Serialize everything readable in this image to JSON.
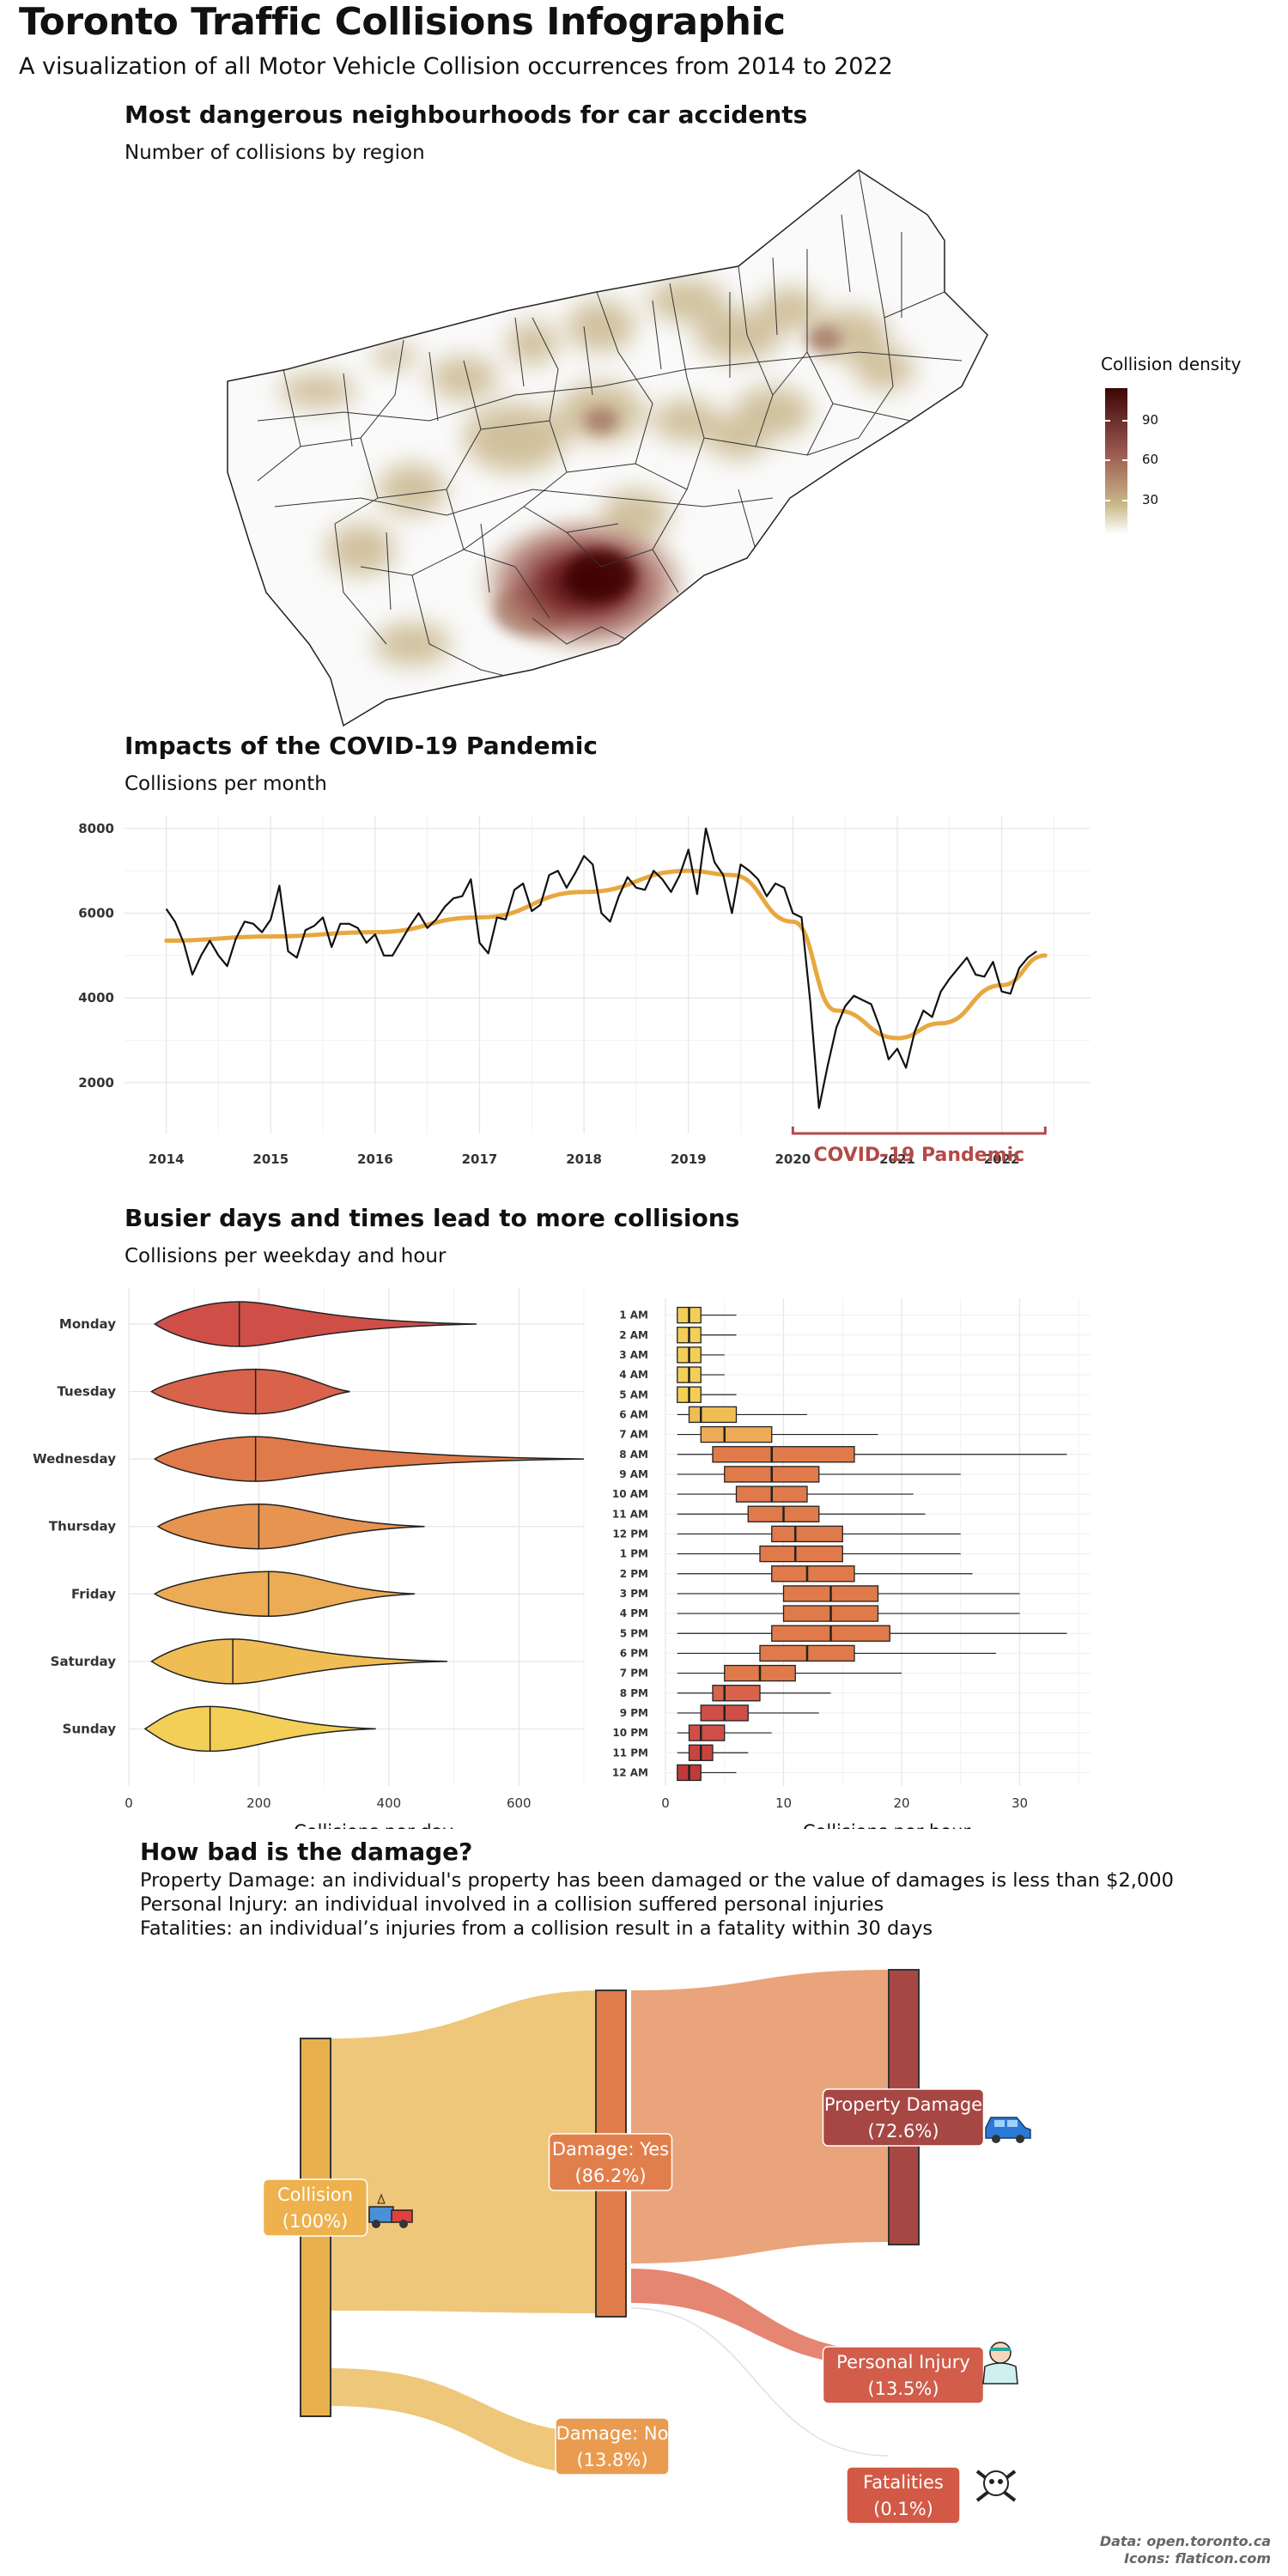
{
  "header": {
    "title": "Toronto Traffic Collisions Infographic",
    "subtitle": "A visualization of all Motor Vehicle Collision occurrences from 2014 to 2022"
  },
  "map_section": {
    "title": "Most dangerous neighbourhoods for car accidents",
    "subtitle": "Number of collisions by region",
    "legend_title": "Collision density",
    "legend_ticks": [
      "90",
      "60",
      "30"
    ],
    "colors": {
      "low": "#c9b98a",
      "mid": "#9c5a52",
      "high": "#4a0a0a"
    }
  },
  "covid_section": {
    "title": "Impacts of the COVID-19 Pandemic",
    "subtitle": "Collisions per month",
    "annotation": "COVID-19 Pandemic",
    "annotation_color": "#b24a48",
    "trend_color": "#e8a840"
  },
  "weekday_section": {
    "title": "Busier days and times lead to more collisions",
    "subtitle": "Collisions per weekday and hour"
  },
  "damage_section": {
    "title": "How bad is the damage?",
    "definitions": [
      "Property Damage: an individual's property has been damaged or the value of damages is less than $2,000",
      "Personal Injury: an individual involved in a collision suffered personal injuries",
      "Fatalities: an individual’s injuries from a collision result in a fatality within 30 days"
    ],
    "nodes": {
      "collision": [
        "Collision",
        "(100%)"
      ],
      "damage_yes": [
        "Damage: Yes",
        "(86.2%)"
      ],
      "damage_no": [
        "Damage: No",
        "(13.8%)"
      ],
      "property": [
        "Property Damage",
        "(72.6%)"
      ],
      "injury": [
        "Personal Injury",
        "(13.5%)"
      ],
      "fatal": [
        "Fatalities",
        "(0.1%)"
      ]
    },
    "icons": [
      "tow-truck-icon",
      "car-icon",
      "injured-person-icon",
      "skull-crossbones-icon"
    ]
  },
  "footer": {
    "line1": "Data: open.toronto.ca",
    "line2": "Icons: flaticon.com"
  },
  "chart_data": [
    {
      "type": "line",
      "title": "Impacts of the COVID-19 Pandemic",
      "subtitle": "Collisions per month",
      "x_ticks": [
        "2014",
        "2015",
        "2016",
        "2017",
        "2018",
        "2019",
        "2020",
        "2021",
        "2022"
      ],
      "y_ticks": [
        2000,
        4000,
        6000,
        8000
      ],
      "ylim": [
        800,
        8300
      ],
      "series": [
        {
          "values": [
            [
              "2014-01",
              6100
            ],
            [
              "2014-02",
              5800
            ],
            [
              "2014-03",
              5300
            ],
            [
              "2014-04",
              4550
            ],
            [
              "2014-05",
              5000
            ],
            [
              "2014-06",
              5350
            ],
            [
              "2014-07",
              5000
            ],
            [
              "2014-08",
              4750
            ],
            [
              "2014-09",
              5400
            ],
            [
              "2014-10",
              5800
            ],
            [
              "2014-11",
              5750
            ],
            [
              "2014-12",
              5550
            ],
            [
              "2015-01",
              5850
            ],
            [
              "2015-02",
              6650
            ],
            [
              "2015-03",
              5100
            ],
            [
              "2015-04",
              4950
            ],
            [
              "2015-05",
              5600
            ],
            [
              "2015-06",
              5700
            ],
            [
              "2015-07",
              5900
            ],
            [
              "2015-08",
              5200
            ],
            [
              "2015-09",
              5750
            ],
            [
              "2015-10",
              5750
            ],
            [
              "2015-11",
              5650
            ],
            [
              "2015-12",
              5300
            ],
            [
              "2016-01",
              5500
            ],
            [
              "2016-02",
              5000
            ],
            [
              "2016-03",
              5000
            ],
            [
              "2016-04",
              5350
            ],
            [
              "2016-05",
              5700
            ],
            [
              "2016-06",
              6000
            ],
            [
              "2016-07",
              5650
            ],
            [
              "2016-08",
              5850
            ],
            [
              "2016-09",
              6150
            ],
            [
              "2016-10",
              6350
            ],
            [
              "2016-11",
              6400
            ],
            [
              "2016-12",
              6800
            ],
            [
              "2017-01",
              5300
            ],
            [
              "2017-02",
              5050
            ],
            [
              "2017-03",
              5900
            ],
            [
              "2017-04",
              5850
            ],
            [
              "2017-05",
              6550
            ],
            [
              "2017-06",
              6700
            ],
            [
              "2017-07",
              6050
            ],
            [
              "2017-08",
              6200
            ],
            [
              "2017-09",
              6900
            ],
            [
              "2017-10",
              7000
            ],
            [
              "2017-11",
              6600
            ],
            [
              "2017-12",
              6950
            ],
            [
              "2018-01",
              7350
            ],
            [
              "2018-02",
              7150
            ],
            [
              "2018-03",
              6000
            ],
            [
              "2018-04",
              5800
            ],
            [
              "2018-05",
              6400
            ],
            [
              "2018-06",
              6850
            ],
            [
              "2018-07",
              6600
            ],
            [
              "2018-08",
              6550
            ],
            [
              "2018-09",
              7000
            ],
            [
              "2018-10",
              6800
            ],
            [
              "2018-11",
              6500
            ],
            [
              "2018-12",
              6900
            ],
            [
              "2019-01",
              7500
            ],
            [
              "2019-02",
              6450
            ],
            [
              "2019-03",
              8000
            ],
            [
              "2019-04",
              7200
            ],
            [
              "2019-05",
              6900
            ],
            [
              "2019-06",
              6000
            ],
            [
              "2019-07",
              7150
            ],
            [
              "2019-08",
              7000
            ],
            [
              "2019-09",
              6800
            ],
            [
              "2019-10",
              6400
            ],
            [
              "2019-11",
              6700
            ],
            [
              "2019-12",
              6600
            ],
            [
              "2020-01",
              6000
            ],
            [
              "2020-02",
              5900
            ],
            [
              "2020-03",
              3900
            ],
            [
              "2020-04",
              1400
            ],
            [
              "2020-05",
              2400
            ],
            [
              "2020-06",
              3300
            ],
            [
              "2020-07",
              3800
            ],
            [
              "2020-08",
              4050
            ],
            [
              "2020-09",
              3950
            ],
            [
              "2020-10",
              3850
            ],
            [
              "2020-11",
              3300
            ],
            [
              "2020-12",
              2550
            ],
            [
              "2021-01",
              2800
            ],
            [
              "2021-02",
              2350
            ],
            [
              "2021-03",
              3200
            ],
            [
              "2021-04",
              3700
            ],
            [
              "2021-05",
              3550
            ],
            [
              "2021-06",
              4150
            ],
            [
              "2021-07",
              4450
            ],
            [
              "2021-08",
              4700
            ],
            [
              "2021-09",
              4950
            ],
            [
              "2021-10",
              4550
            ],
            [
              "2021-11",
              4500
            ],
            [
              "2021-12",
              4850
            ],
            [
              "2022-01",
              4150
            ],
            [
              "2022-02",
              4100
            ],
            [
              "2022-03",
              4700
            ],
            [
              "2022-04",
              4950
            ],
            [
              "2022-05",
              5100
            ]
          ]
        }
      ],
      "trend": [
        [
          "2014",
          5350
        ],
        [
          "2015",
          5450
        ],
        [
          "2016",
          5550
        ],
        [
          "2017",
          5900
        ],
        [
          "2018",
          6500
        ],
        [
          "2019",
          7000
        ],
        [
          "2019-06",
          6900
        ],
        [
          "2020",
          5800
        ],
        [
          "2020-06",
          3700
        ],
        [
          "2021",
          3050
        ],
        [
          "2021-06",
          3400
        ],
        [
          "2022",
          4300
        ],
        [
          "2022-06",
          5000
        ]
      ],
      "annotation": {
        "label": "COVID-19 Pandemic",
        "x_range": [
          "2020",
          "2022-06"
        ]
      }
    },
    {
      "type": "violin",
      "xlabel": "Collisions per day",
      "x_ticks": [
        0,
        200,
        400,
        600
      ],
      "xlim": [
        0,
        700
      ],
      "categories": [
        "Monday",
        "Tuesday",
        "Wednesday",
        "Thursday",
        "Friday",
        "Saturday",
        "Sunday"
      ],
      "series": [
        {
          "name": "Monday",
          "min": 40,
          "median": 170,
          "max": 535,
          "color": "#cf4f48"
        },
        {
          "name": "Tuesday",
          "min": 35,
          "median": 195,
          "max": 340,
          "color": "#d8624a"
        },
        {
          "name": "Wednesday",
          "min": 40,
          "median": 195,
          "max": 700,
          "color": "#e07a4a"
        },
        {
          "name": "Thursday",
          "min": 45,
          "median": 200,
          "max": 455,
          "color": "#e69450"
        },
        {
          "name": "Friday",
          "min": 40,
          "median": 215,
          "max": 440,
          "color": "#ecab55"
        },
        {
          "name": "Saturday",
          "min": 35,
          "median": 160,
          "max": 490,
          "color": "#f0bd55"
        },
        {
          "name": "Sunday",
          "min": 25,
          "median": 125,
          "max": 380,
          "color": "#f3cf57"
        }
      ]
    },
    {
      "type": "boxplot",
      "xlabel": "Collisions per hour",
      "x_ticks": [
        0,
        10,
        20,
        30
      ],
      "xlim": [
        0,
        36
      ],
      "categories": [
        "1 AM",
        "2 AM",
        "3 AM",
        "4 AM",
        "5 AM",
        "6 AM",
        "7 AM",
        "8 AM",
        "9 AM",
        "10 AM",
        "11 AM",
        "12 PM",
        "1 PM",
        "2 PM",
        "3 PM",
        "4 PM",
        "5 PM",
        "6 PM",
        "7 PM",
        "8 PM",
        "9 PM",
        "10 PM",
        "11 PM",
        "12 AM"
      ],
      "series": [
        {
          "name": "1 AM",
          "min": 1,
          "q1": 1,
          "median": 2,
          "q3": 3,
          "max": 6
        },
        {
          "name": "2 AM",
          "min": 1,
          "q1": 1,
          "median": 2,
          "q3": 3,
          "max": 6
        },
        {
          "name": "3 AM",
          "min": 1,
          "q1": 1,
          "median": 2,
          "q3": 3,
          "max": 5
        },
        {
          "name": "4 AM",
          "min": 1,
          "q1": 1,
          "median": 2,
          "q3": 3,
          "max": 5
        },
        {
          "name": "5 AM",
          "min": 1,
          "q1": 1,
          "median": 2,
          "q3": 3,
          "max": 6
        },
        {
          "name": "6 AM",
          "min": 1,
          "q1": 2,
          "median": 3,
          "q3": 6,
          "max": 12
        },
        {
          "name": "7 AM",
          "min": 1,
          "q1": 3,
          "median": 5,
          "q3": 9,
          "max": 18
        },
        {
          "name": "8 AM",
          "min": 1,
          "q1": 4,
          "median": 9,
          "q3": 16,
          "max": 34
        },
        {
          "name": "9 AM",
          "min": 1,
          "q1": 5,
          "median": 9,
          "q3": 13,
          "max": 25
        },
        {
          "name": "10 AM",
          "min": 1,
          "q1": 6,
          "median": 9,
          "q3": 12,
          "max": 21
        },
        {
          "name": "11 AM",
          "min": 1,
          "q1": 7,
          "median": 10,
          "q3": 13,
          "max": 22
        },
        {
          "name": "12 PM",
          "min": 1,
          "q1": 9,
          "median": 11,
          "q3": 15,
          "max": 25
        },
        {
          "name": "1 PM",
          "min": 1,
          "q1": 8,
          "median": 11,
          "q3": 15,
          "max": 25
        },
        {
          "name": "2 PM",
          "min": 1,
          "q1": 9,
          "median": 12,
          "q3": 16,
          "max": 26
        },
        {
          "name": "3 PM",
          "min": 1,
          "q1": 10,
          "median": 14,
          "q3": 18,
          "max": 30
        },
        {
          "name": "4 PM",
          "min": 1,
          "q1": 10,
          "median": 14,
          "q3": 18,
          "max": 30
        },
        {
          "name": "5 PM",
          "min": 1,
          "q1": 9,
          "median": 14,
          "q3": 19,
          "max": 34
        },
        {
          "name": "6 PM",
          "min": 1,
          "q1": 8,
          "median": 12,
          "q3": 16,
          "max": 28
        },
        {
          "name": "7 PM",
          "min": 1,
          "q1": 5,
          "median": 8,
          "q3": 11,
          "max": 20
        },
        {
          "name": "8 PM",
          "min": 1,
          "q1": 4,
          "median": 5,
          "q3": 8,
          "max": 14
        },
        {
          "name": "9 PM",
          "min": 1,
          "q1": 3,
          "median": 5,
          "q3": 7,
          "max": 13
        },
        {
          "name": "10 PM",
          "min": 1,
          "q1": 2,
          "median": 3,
          "q3": 5,
          "max": 9
        },
        {
          "name": "11 PM",
          "min": 1,
          "q1": 2,
          "median": 3,
          "q3": 4,
          "max": 7
        },
        {
          "name": "12 AM",
          "min": 1,
          "q1": 1,
          "median": 2,
          "q3": 3,
          "max": 6
        }
      ]
    },
    {
      "type": "sankey",
      "nodes": [
        "Collision",
        "Damage: Yes",
        "Damage: No",
        "Property Damage",
        "Personal Injury",
        "Fatalities"
      ],
      "links": [
        {
          "source": "Collision",
          "target": "Damage: Yes",
          "value": 86.2
        },
        {
          "source": "Collision",
          "target": "Damage: No",
          "value": 13.8
        },
        {
          "source": "Damage: Yes",
          "target": "Property Damage",
          "value": 72.6
        },
        {
          "source": "Damage: Yes",
          "target": "Personal Injury",
          "value": 13.5
        },
        {
          "source": "Damage: Yes",
          "target": "Fatalities",
          "value": 0.1
        }
      ]
    }
  ]
}
